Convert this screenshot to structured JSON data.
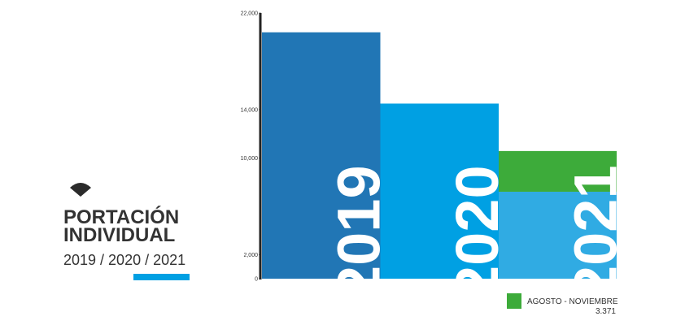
{
  "chart_data": {
    "type": "bar",
    "stacked": true,
    "title": [
      "PORTACIÓN",
      "INDIVIDUAL"
    ],
    "subtitle": "2019 / 2020 / 2021",
    "categories": [
      "2019",
      "2020",
      "2021"
    ],
    "series": [
      {
        "colors": [
          "#2176b5",
          "#00a0e3",
          "#30abe3"
        ],
        "values": [
          20400,
          14500,
          7200
        ]
      },
      {
        "name": "AGOSTO - NOVIEMBRE",
        "color": "#3dab3a",
        "values": [
          null,
          null,
          3371
        ],
        "value_labels": [
          null,
          null,
          "3.371"
        ]
      }
    ],
    "ylim": [
      0,
      22000
    ],
    "yticks": [
      0,
      {
        "value": 2000,
        "label": "2,000"
      },
      {
        "value": 10000,
        "label": "10,000"
      },
      {
        "value": 14000,
        "label": "14,000"
      },
      {
        "value": 22000,
        "label": "22,000"
      }
    ],
    "grid": false,
    "legend": "bottom-right"
  }
}
